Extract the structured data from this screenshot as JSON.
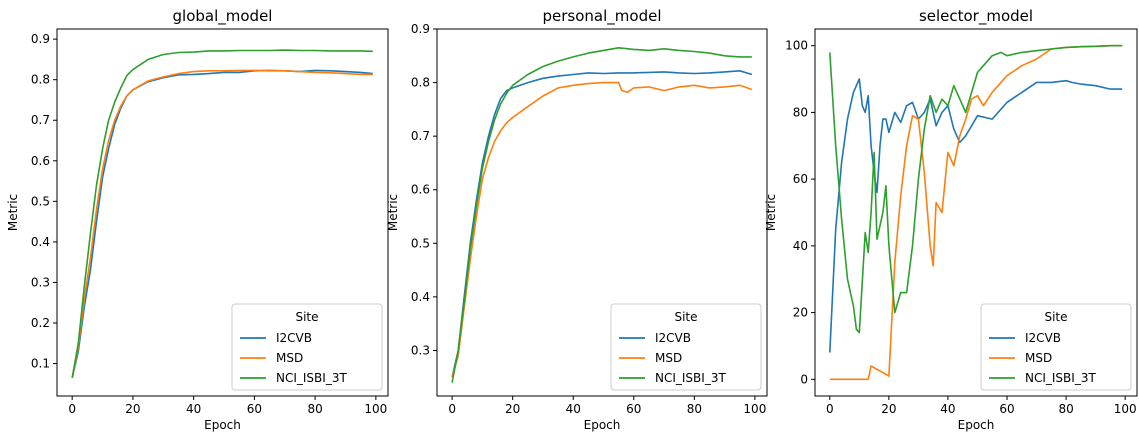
{
  "chart_data": [
    {
      "type": "line",
      "title": "global_model",
      "xlabel": "Epoch",
      "ylabel": "Metric",
      "xlim": [
        -5,
        104
      ],
      "ylim": [
        0.02,
        0.925
      ],
      "xticks": [
        0,
        20,
        40,
        60,
        80,
        100
      ],
      "yticks": [
        0.1,
        0.2,
        0.3,
        0.4,
        0.5,
        0.6,
        0.7,
        0.8,
        0.9
      ],
      "tick_decimals": 1,
      "grid": false,
      "legend": {
        "title": "Site",
        "placement": "lower-right"
      },
      "series": [
        {
          "name": "I2CVB",
          "color": "#1f77b4",
          "x": [
            0,
            2,
            4,
            6,
            8,
            10,
            12,
            14,
            16,
            18,
            20,
            25,
            30,
            35,
            40,
            45,
            50,
            55,
            60,
            65,
            70,
            75,
            80,
            85,
            90,
            95,
            99
          ],
          "y": [
            0.065,
            0.13,
            0.24,
            0.33,
            0.45,
            0.56,
            0.63,
            0.69,
            0.73,
            0.76,
            0.775,
            0.795,
            0.805,
            0.812,
            0.813,
            0.815,
            0.818,
            0.818,
            0.822,
            0.823,
            0.822,
            0.82,
            0.823,
            0.822,
            0.82,
            0.818,
            0.815
          ]
        },
        {
          "name": "MSD",
          "color": "#ff7f0e",
          "x": [
            0,
            2,
            4,
            6,
            8,
            10,
            12,
            14,
            16,
            18,
            20,
            25,
            30,
            35,
            40,
            45,
            50,
            55,
            60,
            65,
            70,
            75,
            80,
            85,
            90,
            95,
            99
          ],
          "y": [
            0.065,
            0.14,
            0.26,
            0.36,
            0.48,
            0.58,
            0.65,
            0.7,
            0.735,
            0.76,
            0.775,
            0.797,
            0.807,
            0.815,
            0.82,
            0.822,
            0.822,
            0.823,
            0.823,
            0.822,
            0.822,
            0.82,
            0.818,
            0.817,
            0.815,
            0.813,
            0.813
          ]
        },
        {
          "name": "NCI_ISBI_3T",
          "color": "#2ca02c",
          "x": [
            0,
            2,
            4,
            6,
            8,
            10,
            12,
            14,
            16,
            18,
            20,
            25,
            30,
            35,
            40,
            45,
            50,
            55,
            60,
            65,
            70,
            75,
            80,
            85,
            90,
            95,
            99
          ],
          "y": [
            0.065,
            0.15,
            0.29,
            0.42,
            0.54,
            0.63,
            0.7,
            0.745,
            0.78,
            0.81,
            0.825,
            0.85,
            0.862,
            0.867,
            0.868,
            0.871,
            0.871,
            0.872,
            0.872,
            0.872,
            0.873,
            0.872,
            0.872,
            0.871,
            0.871,
            0.871,
            0.87
          ]
        }
      ]
    },
    {
      "type": "line",
      "title": "personal_model",
      "xlabel": "Epoch",
      "ylabel": "Metric",
      "xlim": [
        -5,
        104
      ],
      "ylim": [
        0.215,
        0.9
      ],
      "xticks": [
        0,
        20,
        40,
        60,
        80,
        100
      ],
      "yticks": [
        0.3,
        0.4,
        0.5,
        0.6,
        0.7,
        0.8,
        0.9
      ],
      "tick_decimals": 1,
      "grid": false,
      "legend": {
        "title": "Site",
        "placement": "lower-right"
      },
      "series": [
        {
          "name": "I2CVB",
          "color": "#1f77b4",
          "x": [
            0,
            2,
            4,
            6,
            8,
            10,
            12,
            14,
            16,
            18,
            20,
            25,
            30,
            35,
            40,
            45,
            50,
            55,
            60,
            65,
            70,
            75,
            80,
            85,
            90,
            95,
            99
          ],
          "y": [
            0.25,
            0.3,
            0.4,
            0.5,
            0.58,
            0.65,
            0.7,
            0.74,
            0.77,
            0.785,
            0.79,
            0.8,
            0.808,
            0.812,
            0.815,
            0.818,
            0.817,
            0.818,
            0.818,
            0.819,
            0.82,
            0.818,
            0.817,
            0.818,
            0.82,
            0.822,
            0.815
          ]
        },
        {
          "name": "MSD",
          "color": "#ff7f0e",
          "x": [
            0,
            2,
            4,
            6,
            8,
            10,
            12,
            14,
            16,
            18,
            20,
            25,
            30,
            35,
            40,
            45,
            50,
            55,
            56,
            58,
            60,
            65,
            70,
            75,
            80,
            85,
            90,
            95,
            99
          ],
          "y": [
            0.25,
            0.29,
            0.38,
            0.47,
            0.55,
            0.62,
            0.66,
            0.69,
            0.71,
            0.725,
            0.735,
            0.755,
            0.775,
            0.79,
            0.795,
            0.798,
            0.8,
            0.8,
            0.785,
            0.782,
            0.79,
            0.792,
            0.785,
            0.792,
            0.795,
            0.79,
            0.792,
            0.795,
            0.787
          ]
        },
        {
          "name": "NCI_ISBI_3T",
          "color": "#2ca02c",
          "x": [
            0,
            2,
            4,
            6,
            8,
            10,
            12,
            14,
            16,
            18,
            20,
            25,
            30,
            35,
            40,
            45,
            50,
            55,
            60,
            65,
            70,
            75,
            80,
            85,
            90,
            95,
            99
          ],
          "y": [
            0.24,
            0.3,
            0.39,
            0.49,
            0.57,
            0.64,
            0.69,
            0.73,
            0.76,
            0.78,
            0.795,
            0.815,
            0.83,
            0.84,
            0.848,
            0.855,
            0.86,
            0.865,
            0.862,
            0.86,
            0.863,
            0.86,
            0.858,
            0.855,
            0.85,
            0.848,
            0.848
          ]
        }
      ]
    },
    {
      "type": "line",
      "title": "selector_model",
      "xlabel": "Epoch",
      "ylabel": "Metric",
      "xlim": [
        -5,
        104
      ],
      "ylim": [
        -5,
        105
      ],
      "xticks": [
        0,
        20,
        40,
        60,
        80,
        100
      ],
      "yticks": [
        0,
        20,
        40,
        60,
        80,
        100
      ],
      "tick_decimals": 0,
      "grid": false,
      "legend": {
        "title": "Site",
        "placement": "lower-right"
      },
      "series": [
        {
          "name": "I2CVB",
          "color": "#1f77b4",
          "x": [
            0,
            2,
            4,
            6,
            8,
            10,
            11,
            12,
            13,
            14,
            15,
            16,
            17,
            18,
            19,
            20,
            22,
            24,
            26,
            28,
            30,
            32,
            34,
            36,
            38,
            40,
            42,
            44,
            46,
            48,
            50,
            55,
            60,
            65,
            70,
            75,
            80,
            82,
            85,
            90,
            95,
            99
          ],
          "y": [
            8,
            45,
            65,
            78,
            86,
            90,
            82,
            80,
            85,
            70,
            62,
            56,
            70,
            78,
            78,
            74,
            80,
            77,
            82,
            83,
            78,
            80,
            84,
            76,
            80,
            82,
            75,
            71,
            73,
            76,
            79,
            78,
            83,
            86,
            89,
            89,
            89.5,
            89,
            88.5,
            88,
            87,
            87
          ]
        },
        {
          "name": "MSD",
          "color": "#ff7f0e",
          "x": [
            0,
            5,
            10,
            13,
            14,
            16,
            18,
            20,
            22,
            24,
            26,
            28,
            30,
            32,
            34,
            35,
            36,
            38,
            40,
            42,
            44,
            46,
            48,
            50,
            52,
            55,
            60,
            65,
            70,
            75,
            80,
            85,
            90,
            95,
            99
          ],
          "y": [
            0,
            0,
            0,
            0,
            4,
            3,
            2,
            1,
            35,
            55,
            70,
            79,
            78,
            62,
            40,
            34,
            53,
            50,
            68,
            64,
            73,
            78,
            84,
            85,
            82,
            86,
            91,
            94,
            96,
            99,
            99.5,
            99.7,
            99.8,
            100,
            100
          ]
        },
        {
          "name": "NCI_ISBI_3T",
          "color": "#2ca02c",
          "x": [
            0,
            2,
            4,
            6,
            8,
            9,
            10,
            12,
            13,
            14,
            15,
            16,
            18,
            19,
            20,
            22,
            24,
            26,
            28,
            30,
            32,
            34,
            36,
            38,
            40,
            42,
            44,
            46,
            48,
            50,
            52,
            55,
            58,
            60,
            65,
            70,
            75,
            80,
            85,
            90,
            95,
            99
          ],
          "y": [
            98,
            70,
            48,
            30,
            22,
            15,
            14,
            44,
            38,
            50,
            68,
            42,
            50,
            58,
            40,
            20,
            26,
            26,
            40,
            60,
            75,
            85,
            80,
            84,
            82,
            88,
            84,
            80,
            86,
            92,
            94,
            97,
            98,
            97,
            98,
            98.5,
            99,
            99.5,
            99.7,
            99.8,
            100,
            100
          ]
        }
      ]
    }
  ]
}
